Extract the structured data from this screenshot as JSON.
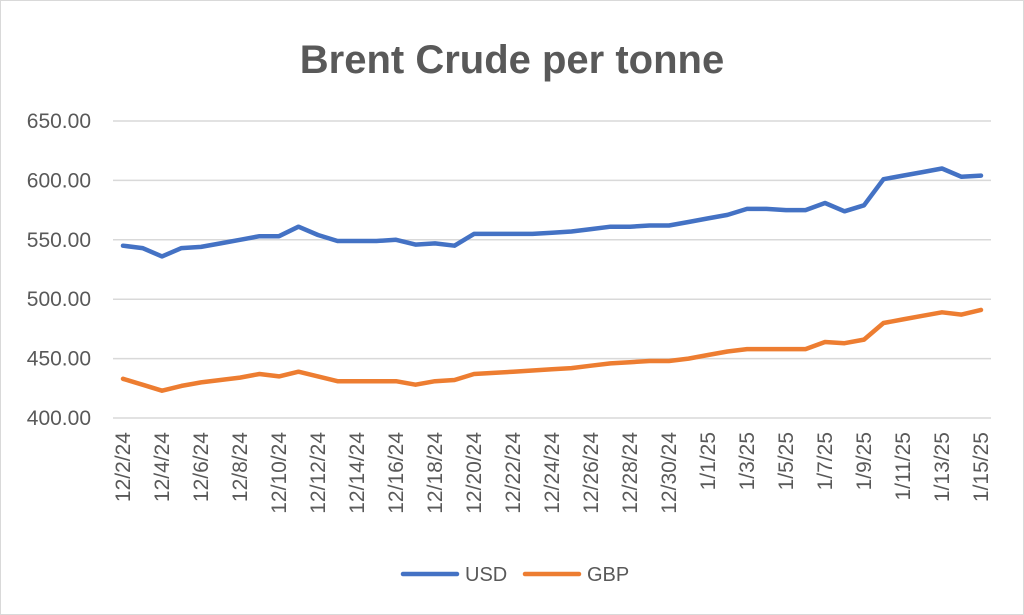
{
  "chart_data": {
    "type": "line",
    "title": "Brent Crude per tonne",
    "xlabel": "",
    "ylabel": "",
    "ylim": [
      400,
      650
    ],
    "yticks": [
      "400.00",
      "450.00",
      "500.00",
      "550.00",
      "600.00",
      "650.00"
    ],
    "xtick_labels": [
      "12/2/24",
      "12/4/24",
      "12/6/24",
      "12/8/24",
      "12/10/24",
      "12/12/24",
      "12/14/24",
      "12/16/24",
      "12/18/24",
      "12/20/24",
      "12/22/24",
      "12/24/24",
      "12/26/24",
      "12/28/24",
      "12/30/24",
      "1/1/25",
      "1/3/25",
      "1/5/25",
      "1/7/25",
      "1/9/25",
      "1/11/25",
      "1/13/25",
      "1/15/25"
    ],
    "x": [
      "12/2/24",
      "12/3/24",
      "12/4/24",
      "12/5/24",
      "12/6/24",
      "12/7/24",
      "12/8/24",
      "12/9/24",
      "12/10/24",
      "12/11/24",
      "12/12/24",
      "12/13/24",
      "12/14/24",
      "12/15/24",
      "12/16/24",
      "12/17/24",
      "12/18/24",
      "12/19/24",
      "12/20/24",
      "12/21/24",
      "12/22/24",
      "12/23/24",
      "12/24/24",
      "12/25/24",
      "12/26/24",
      "12/27/24",
      "12/28/24",
      "12/29/24",
      "12/30/24",
      "12/31/24",
      "1/1/25",
      "1/2/25",
      "1/3/25",
      "1/4/25",
      "1/5/25",
      "1/6/25",
      "1/7/25",
      "1/8/25",
      "1/9/25",
      "1/10/25",
      "1/11/25",
      "1/12/25",
      "1/13/25",
      "1/14/25",
      "1/15/25"
    ],
    "series": [
      {
        "name": "USD",
        "color": "#4472c4",
        "values": [
          545,
          543,
          536,
          543,
          544,
          547,
          550,
          553,
          553,
          561,
          554,
          549,
          549,
          549,
          550,
          546,
          547,
          545,
          555,
          555,
          555,
          555,
          556,
          557,
          559,
          561,
          561,
          562,
          562,
          565,
          568,
          571,
          576,
          576,
          575,
          575,
          581,
          574,
          579,
          601,
          604,
          607,
          610,
          603,
          604
        ]
      },
      {
        "name": "GBP",
        "color": "#ed7d31",
        "values": [
          433,
          428,
          423,
          427,
          430,
          432,
          434,
          437,
          435,
          439,
          435,
          431,
          431,
          431,
          431,
          428,
          431,
          432,
          437,
          438,
          439,
          440,
          441,
          442,
          444,
          446,
          447,
          448,
          448,
          450,
          453,
          456,
          458,
          458,
          458,
          458,
          464,
          463,
          466,
          480,
          483,
          486,
          489,
          487,
          491
        ]
      }
    ],
    "grid": true,
    "legend_position": "bottom"
  }
}
